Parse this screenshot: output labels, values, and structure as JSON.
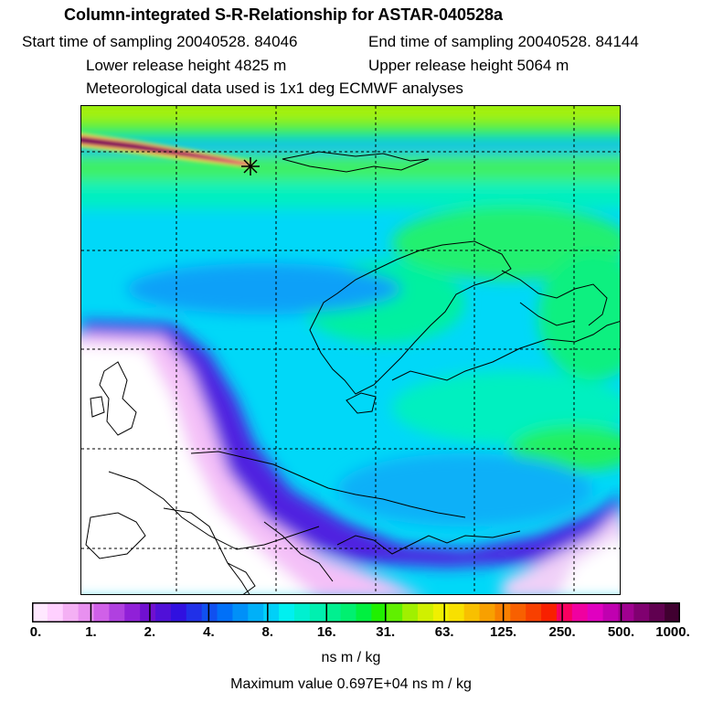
{
  "header": {
    "title": "Column-integrated S-R-Relationship for ASTAR-040528a",
    "start_label": "Start time of sampling 20040528. 84046",
    "end_label": "End time of sampling 20040528. 84144",
    "lower_label": "Lower release height 4825 m",
    "upper_label": "Upper release height 5064 m",
    "met_label": "Meteorological data used is 1x1 deg ECMWF analyses"
  },
  "legend": {
    "ticks": [
      "0.",
      "1.",
      "2.",
      "4.",
      "8.",
      "16.",
      "31.",
      "63.",
      "125.",
      "250.",
      "500.",
      "1000."
    ],
    "colors": [
      "#ffe8ff",
      "#ffd0ff",
      "#f4b0f4",
      "#e890f0",
      "#d060e8",
      "#b040e0",
      "#9020d8",
      "#7010d0",
      "#5010d8",
      "#3010e0",
      "#2030e8",
      "#1050f0",
      "#0070f8",
      "#0090f8",
      "#00b0f8",
      "#00d0f8",
      "#00f0f0",
      "#00f0d0",
      "#00f0b0",
      "#00f090",
      "#00f070",
      "#00f040",
      "#20f000",
      "#60f000",
      "#a0f000",
      "#d0f000",
      "#f0f000",
      "#f8e000",
      "#f8c000",
      "#f8a000",
      "#f88000",
      "#f86000",
      "#f84000",
      "#f82000",
      "#f80060",
      "#f000a0",
      "#e000c0",
      "#c000b0",
      "#a00090",
      "#800070",
      "#600050",
      "#400030"
    ],
    "units": "ns m / kg",
    "max_value": "Maximum value  0.697E+04 ns m / kg"
  },
  "map": {
    "grid": "dashed",
    "release_marker": "star-marker"
  }
}
